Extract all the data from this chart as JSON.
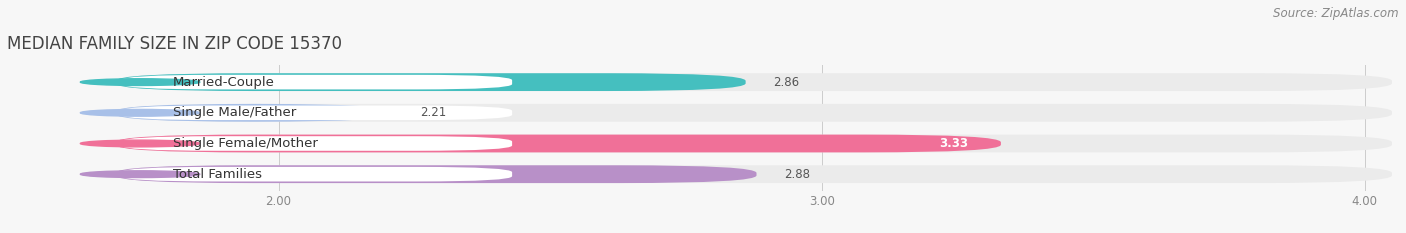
{
  "title": "MEDIAN FAMILY SIZE IN ZIP CODE 15370",
  "source": "Source: ZipAtlas.com",
  "categories": [
    "Married-Couple",
    "Single Male/Father",
    "Single Female/Mother",
    "Total Families"
  ],
  "values": [
    2.86,
    2.21,
    3.33,
    2.88
  ],
  "colors": [
    "#45bfbf",
    "#a8c0e8",
    "#f07098",
    "#b890c8"
  ],
  "xlim_min": 1.5,
  "xlim_max": 4.05,
  "xstart": 1.7,
  "xticks": [
    2.0,
    3.0,
    4.0
  ],
  "bar_height": 0.58,
  "background_color": "#f7f7f7",
  "bar_bg_color": "#ebebeb",
  "title_fontsize": 12,
  "label_fontsize": 9.5,
  "value_fontsize": 8.5,
  "source_fontsize": 8.5
}
